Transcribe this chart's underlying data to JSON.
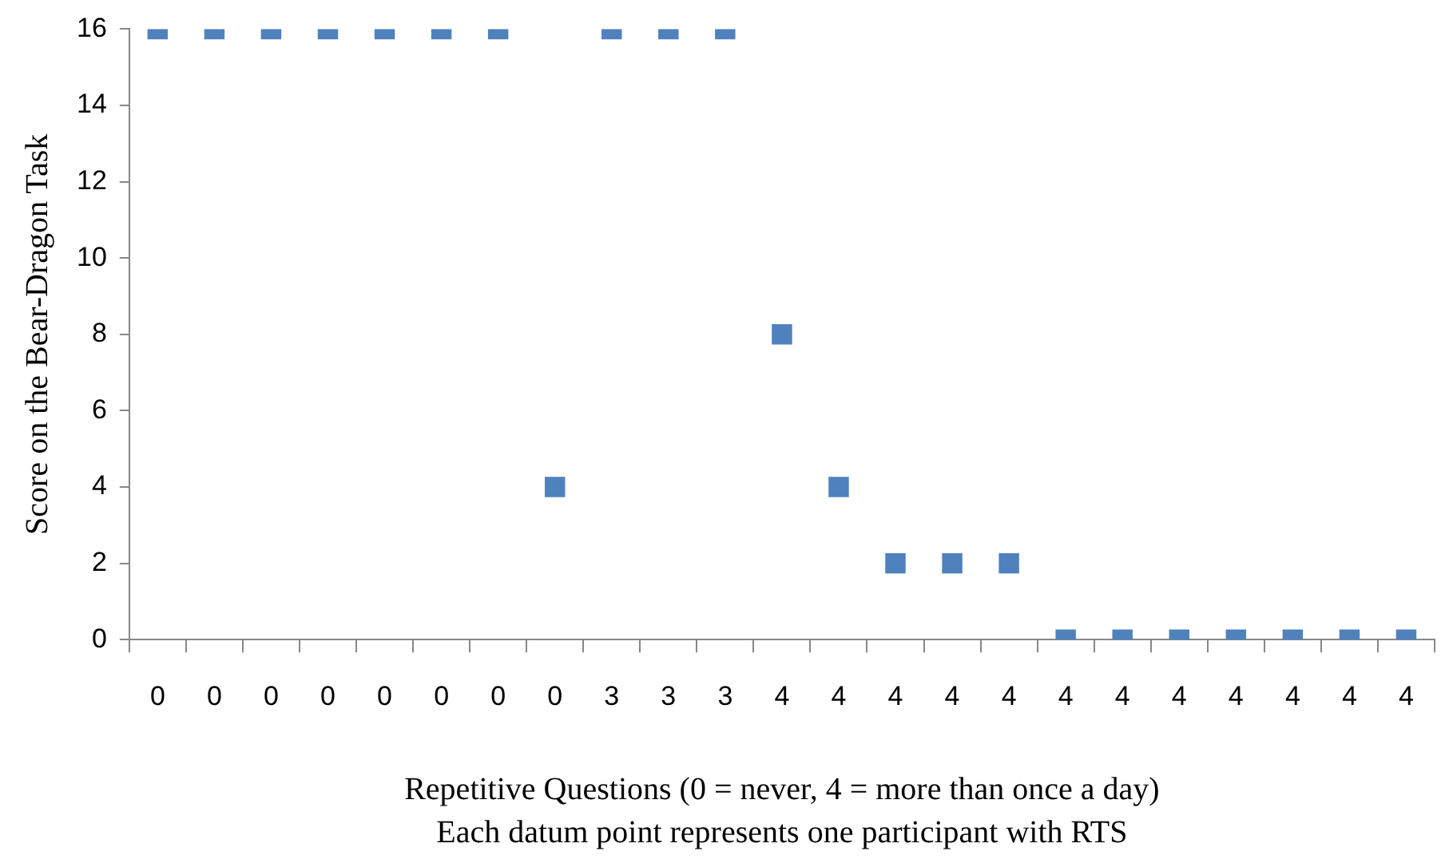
{
  "chart_data": {
    "type": "scatter",
    "xlabel": "Repetitive Questions (0 = never, 4 = more than once a day)",
    "ylabel": "Score on the Bear-Dragon Task",
    "annotations": [
      "Each datum point represents one participant with RTS"
    ],
    "categories": [
      "0",
      "0",
      "0",
      "0",
      "0",
      "0",
      "0",
      "0",
      "3",
      "3",
      "3",
      "4",
      "4",
      "4",
      "4",
      "4",
      "4",
      "4",
      "4",
      "4",
      "4",
      "4",
      "4"
    ],
    "series": [
      {
        "color": "#4f81bd",
        "values": [
          16,
          16,
          16,
          16,
          16,
          16,
          16,
          4,
          16,
          16,
          16,
          8,
          4,
          2,
          2,
          2,
          0,
          0,
          0,
          0,
          0,
          0,
          0
        ]
      }
    ],
    "ylim": [
      0,
      16
    ],
    "yticks": [
      0,
      2,
      4,
      6,
      8,
      10,
      12,
      14,
      16
    ],
    "grid": false,
    "legend": false,
    "marker": "square"
  }
}
